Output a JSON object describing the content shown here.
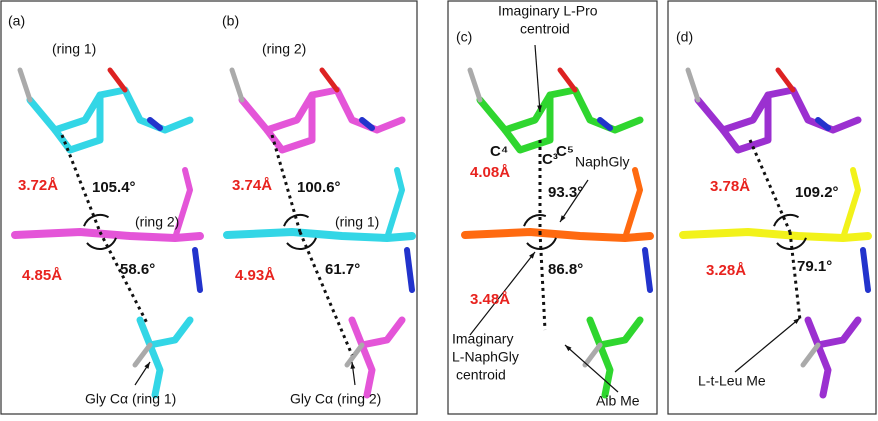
{
  "panels": [
    {
      "texts": [
        "(a)",
        "(ring 1)",
        "3.72Å",
        "105.4°",
        "(ring 2)",
        "4.85Å",
        "58.6°",
        "Gly Cα (ring 1)"
      ]
    },
    {
      "texts": [
        "(b)",
        "(ring 2)",
        "3.74Å",
        "100.6°",
        "(ring 1)",
        "4.93Å",
        "61.7°",
        "Gly Cα (ring 2)"
      ]
    },
    {
      "texts": [
        "(c)",
        "Imaginary L-Pro",
        "centroid",
        "C⁴",
        "C³",
        "C⁵",
        "4.08Å",
        "NaphGly",
        "93.3°",
        "86.8°",
        "3.48Å",
        "Imaginary",
        "L-NaphGly",
        "centroid",
        "Aib Me"
      ]
    },
    {
      "texts": [
        "(d)",
        "3.78Å",
        "109.2°",
        "3.28Å",
        "79.1°",
        "L-t-Leu Me"
      ]
    }
  ]
}
